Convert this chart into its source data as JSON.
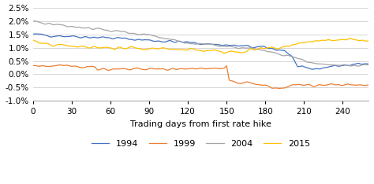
{
  "title": "",
  "xlabel": "Trading days from first rate hike",
  "ylabel": "",
  "xlim": [
    0,
    260
  ],
  "ylim": [
    -0.01,
    0.026
  ],
  "yticks": [
    -0.01,
    -0.005,
    0.0,
    0.005,
    0.01,
    0.015,
    0.02,
    0.025
  ],
  "xticks": [
    0,
    30,
    60,
    90,
    120,
    150,
    180,
    210,
    240
  ],
  "legend_labels": [
    "1994",
    "1999",
    "2004",
    "2015"
  ],
  "colors": {
    "1994": "#4472C4",
    "1999": "#ED7D31",
    "2004": "#A5A5A5",
    "2015": "#FFC000"
  },
  "noise_seed": 42,
  "trend_1994": {
    "segments": [
      [
        0,
        0.015
      ],
      [
        50,
        0.014
      ],
      [
        120,
        0.012
      ],
      [
        180,
        0.01
      ],
      [
        195,
        0.009
      ],
      [
        200,
        0.007
      ],
      [
        205,
        0.003
      ],
      [
        210,
        0.002
      ],
      [
        220,
        0.002
      ],
      [
        230,
        0.003
      ],
      [
        260,
        0.004
      ]
    ],
    "noise_std": 0.0006
  },
  "trend_1999": {
    "segments": [
      [
        0,
        0.003
      ],
      [
        48,
        0.003
      ],
      [
        50,
        0.002
      ],
      [
        148,
        0.002
      ],
      [
        150,
        0.003
      ],
      [
        152,
        -0.002
      ],
      [
        160,
        -0.003
      ],
      [
        175,
        -0.004
      ],
      [
        185,
        -0.005
      ],
      [
        195,
        -0.005
      ],
      [
        200,
        -0.004
      ],
      [
        260,
        -0.004
      ]
    ],
    "noise_std": 0.0005
  },
  "trend_2004": {
    "segments": [
      [
        0,
        0.02
      ],
      [
        10,
        0.019
      ],
      [
        30,
        0.018
      ],
      [
        50,
        0.017
      ],
      [
        70,
        0.016
      ],
      [
        90,
        0.015
      ],
      [
        105,
        0.013
      ],
      [
        120,
        0.012
      ],
      [
        140,
        0.011
      ],
      [
        160,
        0.01
      ],
      [
        180,
        0.009
      ],
      [
        200,
        0.007
      ],
      [
        210,
        0.005
      ],
      [
        220,
        0.004
      ],
      [
        260,
        0.003
      ]
    ],
    "noise_std": 0.0005
  },
  "trend_2015": {
    "segments": [
      [
        0,
        0.013
      ],
      [
        15,
        0.011
      ],
      [
        60,
        0.01
      ],
      [
        145,
        0.009
      ],
      [
        148,
        0.008
      ],
      [
        155,
        0.008
      ],
      [
        165,
        0.009
      ],
      [
        185,
        0.01
      ],
      [
        195,
        0.01
      ],
      [
        200,
        0.011
      ],
      [
        210,
        0.012
      ],
      [
        220,
        0.013
      ],
      [
        260,
        0.013
      ]
    ],
    "noise_std": 0.0006
  }
}
